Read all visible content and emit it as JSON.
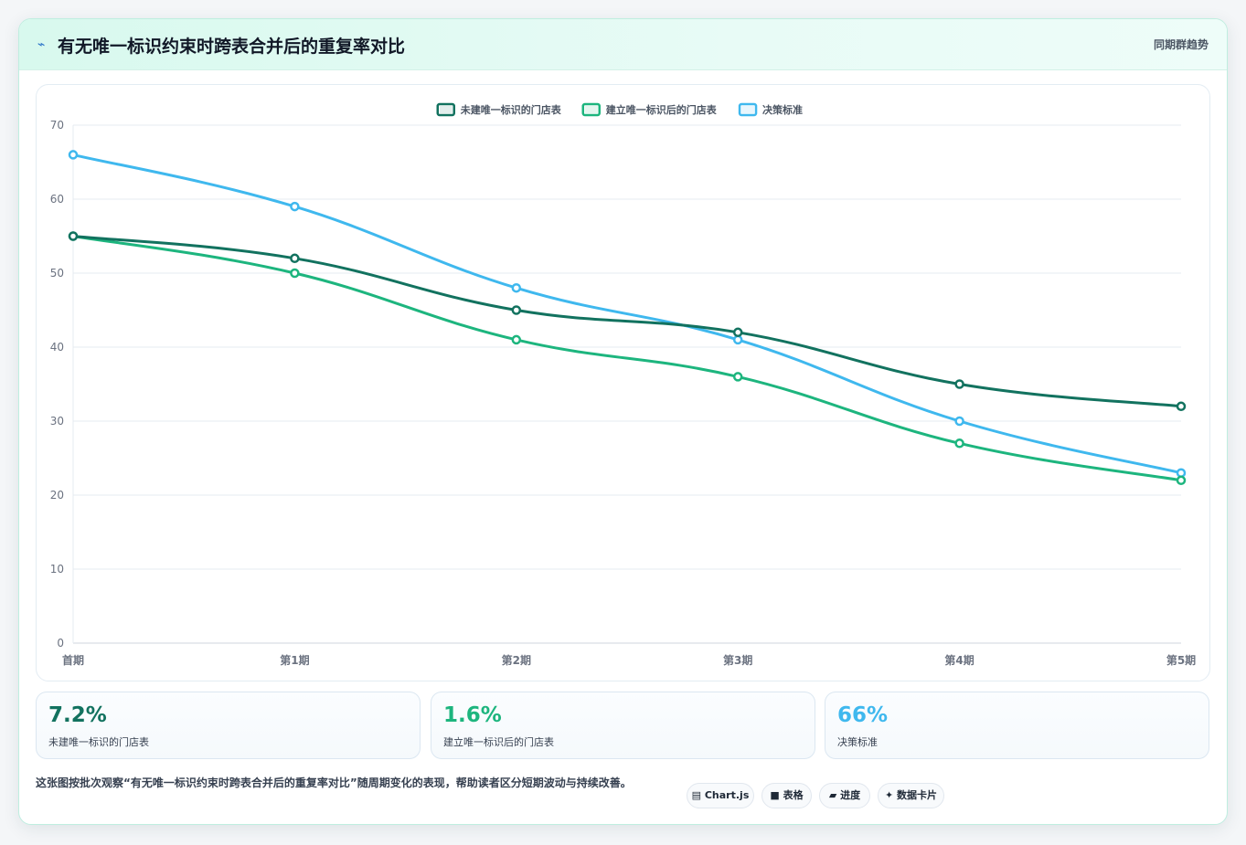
{
  "header": {
    "icon": "⌁",
    "title": "有无唯一标识约束时跨表合并后的重复率对比",
    "badge": "同期群趋势"
  },
  "chart_data": {
    "type": "line",
    "categories": [
      "首期",
      "第1期",
      "第2期",
      "第3期",
      "第4期",
      "第5期"
    ],
    "series": [
      {
        "name": "未建唯一标识的门店表",
        "color": "#12725f",
        "values": [
          55,
          52,
          45,
          42,
          35,
          32
        ]
      },
      {
        "name": "建立唯一标识后的门店表",
        "color": "#1db57e",
        "values": [
          55,
          50,
          41,
          36,
          27,
          22
        ]
      },
      {
        "name": "决策标准",
        "color": "#3fb8ee",
        "values": [
          66,
          59,
          48,
          41,
          30,
          23
        ]
      }
    ],
    "ylim": [
      0,
      70
    ],
    "yticks": [
      0,
      10,
      20,
      30,
      40,
      50,
      60,
      70
    ],
    "grid": true,
    "legend": "top-center"
  },
  "stats": [
    {
      "value": "7.2%",
      "label": "未建唯一标识的门店表",
      "color": "#12725f"
    },
    {
      "value": "1.6%",
      "label": "建立唯一标识后的门店表",
      "color": "#1db57e"
    },
    {
      "value": "66%",
      "label": "决策标准",
      "color": "#3fb8ee"
    }
  ],
  "note": "这张图按批次观察“有无唯一标识约束时跨表合并后的重复率对比”随周期变化的表现，帮助读者区分短期波动与持续改善。",
  "chips": [
    {
      "icon": "▤",
      "label": "Chart.js"
    },
    {
      "icon": "■",
      "label": "表格"
    },
    {
      "icon": "▰",
      "label": "进度"
    },
    {
      "icon": "✦",
      "label": "数据卡片"
    }
  ]
}
